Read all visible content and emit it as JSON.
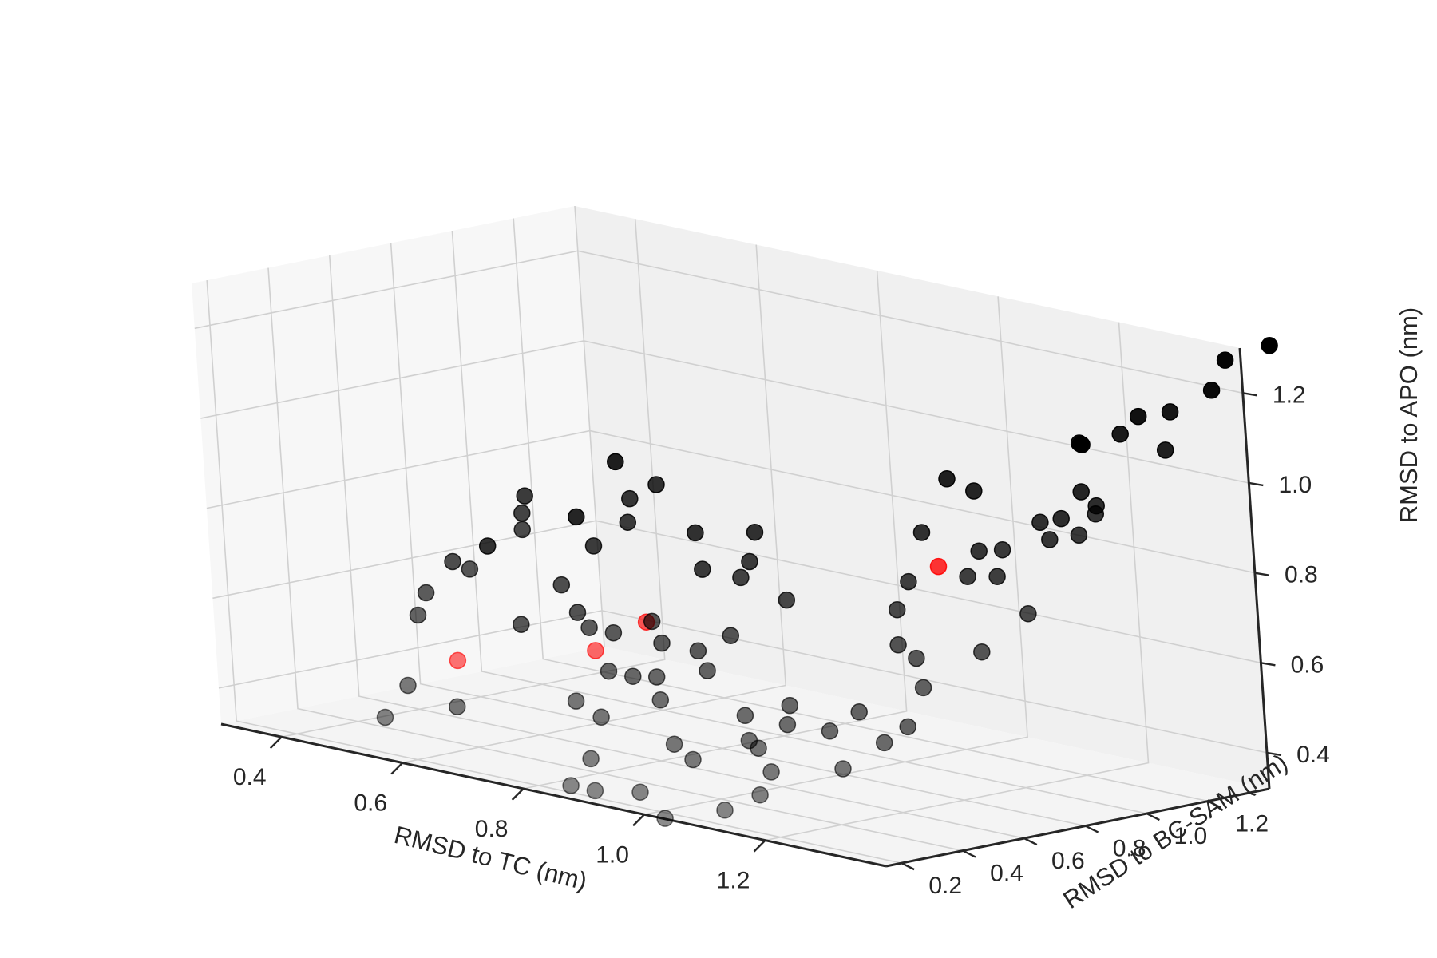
{
  "chart_data": {
    "type": "scatter",
    "projection": "3d",
    "grid": true,
    "xlabel": "RMSD to TC (nm)",
    "ylabel": "RMSD to BC-SAM (nm)",
    "zlabel": "RMSD to APO (nm)",
    "x_ticks": [
      "0.4",
      "0.6",
      "0.8",
      "1.0",
      "1.2"
    ],
    "y_ticks": [
      "0.2",
      "0.4",
      "0.6",
      "0.8",
      "1.0",
      "1.2"
    ],
    "z_ticks": [
      "0.4",
      "0.6",
      "0.8",
      "1.0",
      "1.2"
    ],
    "xlim": [
      0.3,
      1.4
    ],
    "ylim": [
      0.15,
      1.4
    ],
    "zlim": [
      0.32,
      1.3
    ],
    "series": [
      {
        "color": "#000000",
        "points": [
          [
            0.35,
            0.95,
            0.62
          ],
          [
            0.45,
            1.05,
            0.7
          ],
          [
            0.48,
            1.13,
            0.82
          ],
          [
            0.42,
            0.7,
            0.64
          ],
          [
            0.47,
            0.85,
            0.78
          ],
          [
            0.5,
            0.78,
            0.76
          ],
          [
            0.53,
            0.72,
            0.74
          ],
          [
            0.5,
            0.6,
            0.66
          ],
          [
            0.45,
            0.55,
            0.6
          ],
          [
            0.46,
            0.5,
            0.56
          ],
          [
            0.58,
            0.85,
            0.7
          ],
          [
            0.58,
            0.6,
            0.56
          ],
          [
            0.62,
            0.9,
            0.81
          ],
          [
            0.64,
            0.95,
            0.84
          ],
          [
            0.64,
            0.85,
            0.77
          ],
          [
            0.6,
            0.7,
            0.64
          ],
          [
            0.65,
            0.65,
            0.6
          ],
          [
            0.55,
            0.28,
            0.46
          ],
          [
            0.55,
            0.2,
            0.4
          ],
          [
            0.62,
            0.3,
            0.43
          ],
          [
            0.7,
            0.95,
            0.75
          ],
          [
            0.8,
            0.95,
            0.78
          ],
          [
            0.76,
            0.85,
            0.7
          ],
          [
            0.72,
            0.55,
            0.6
          ],
          [
            0.76,
            0.55,
            0.6
          ],
          [
            0.84,
            0.85,
            0.74
          ],
          [
            0.8,
            0.6,
            0.63
          ],
          [
            0.86,
            0.78,
            0.72
          ],
          [
            0.84,
            0.55,
            0.6
          ],
          [
            0.84,
            0.45,
            0.54
          ],
          [
            0.8,
            0.45,
            0.54
          ],
          [
            0.88,
            0.45,
            0.55
          ],
          [
            0.82,
            0.3,
            0.5
          ],
          [
            0.92,
            0.38,
            0.52
          ],
          [
            0.95,
            0.48,
            0.58
          ],
          [
            0.85,
            0.32,
            0.47
          ],
          [
            0.9,
            0.55,
            0.6
          ],
          [
            0.95,
            0.75,
            0.7
          ],
          [
            0.92,
            0.62,
            0.63
          ],
          [
            0.88,
            0.22,
            0.4
          ],
          [
            0.88,
            0.15,
            0.35
          ],
          [
            0.92,
            0.15,
            0.35
          ],
          [
            0.98,
            0.3,
            0.45
          ],
          [
            0.98,
            0.18,
            0.36
          ],
          [
            1.02,
            0.28,
            0.43
          ],
          [
            1.08,
            0.35,
            0.48
          ],
          [
            1.05,
            0.4,
            0.52
          ],
          [
            1.1,
            0.45,
            0.55
          ],
          [
            1.12,
            0.4,
            0.52
          ],
          [
            1.1,
            0.34,
            0.47
          ],
          [
            1.15,
            0.28,
            0.44
          ],
          [
            1.16,
            0.22,
            0.4
          ],
          [
            1.12,
            0.18,
            0.36
          ],
          [
            1.05,
            0.12,
            0.33
          ],
          [
            1.2,
            0.48,
            0.56
          ],
          [
            1.18,
            0.42,
            0.52
          ],
          [
            1.25,
            0.32,
            0.47
          ],
          [
            1.28,
            0.48,
            0.55
          ],
          [
            1.27,
            0.42,
            0.52
          ],
          [
            1.05,
            1.1,
            0.95
          ],
          [
            1.08,
            0.95,
            0.86
          ],
          [
            1.12,
            0.82,
            0.78
          ],
          [
            1.15,
            0.72,
            0.74
          ],
          [
            1.2,
            0.62,
            0.69
          ],
          [
            1.2,
            0.9,
            0.86
          ],
          [
            1.12,
            1.05,
            0.95
          ],
          [
            1.22,
            0.82,
            0.82
          ],
          [
            1.25,
            0.88,
            0.88
          ],
          [
            1.28,
            0.95,
            0.94
          ],
          [
            1.3,
            1.05,
            1.0
          ],
          [
            1.3,
            0.98,
            0.95
          ],
          [
            1.35,
            1.0,
            0.99
          ],
          [
            1.32,
            0.9,
            0.92
          ],
          [
            1.28,
            0.8,
            0.84
          ],
          [
            1.38,
            0.88,
            0.95
          ],
          [
            1.25,
            0.58,
            0.68
          ],
          [
            1.35,
            0.6,
            0.72
          ],
          [
            1.3,
            0.5,
            0.64
          ],
          [
            1.38,
            0.7,
            0.8
          ],
          [
            1.4,
            0.9,
            1.0
          ],
          [
            1.25,
            1.15,
            1.08
          ],
          [
            1.32,
            1.15,
            1.12
          ],
          [
            1.38,
            1.2,
            1.18
          ],
          [
            1.4,
            1.3,
            1.22
          ],
          [
            1.3,
            1.25,
            1.14
          ],
          [
            1.4,
            1.35,
            1.28
          ],
          [
            1.45,
            1.4,
            1.32
          ],
          [
            1.2,
            1.25,
            1.05
          ],
          [
            1.15,
            1.35,
            1.02
          ],
          [
            1.42,
            1.1,
            1.12
          ]
        ]
      },
      {
        "color": "#ff0000",
        "points": [
          [
            0.6,
            0.35,
            0.52
          ],
          [
            0.78,
            0.45,
            0.58
          ],
          [
            0.78,
            0.62,
            0.62
          ],
          [
            1.12,
            0.92,
            0.8
          ]
        ]
      }
    ]
  }
}
